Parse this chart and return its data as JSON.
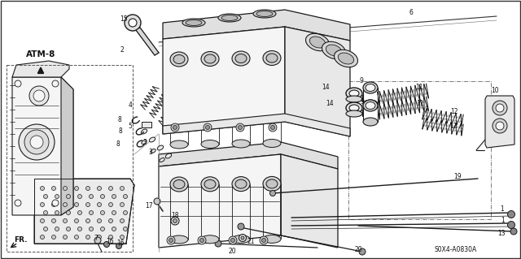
{
  "bg_color": "#ffffff",
  "diagram_code": "S0X4-A0830A",
  "atm_label": "ATM-8",
  "fr_label": "FR.",
  "fig_width": 6.4,
  "fig_height": 3.19,
  "dpi": 100,
  "line_color": "#1a1a1a",
  "fill_light": "#f5f5f5",
  "fill_mid": "#e8e8e8",
  "fill_dark": "#cccccc"
}
